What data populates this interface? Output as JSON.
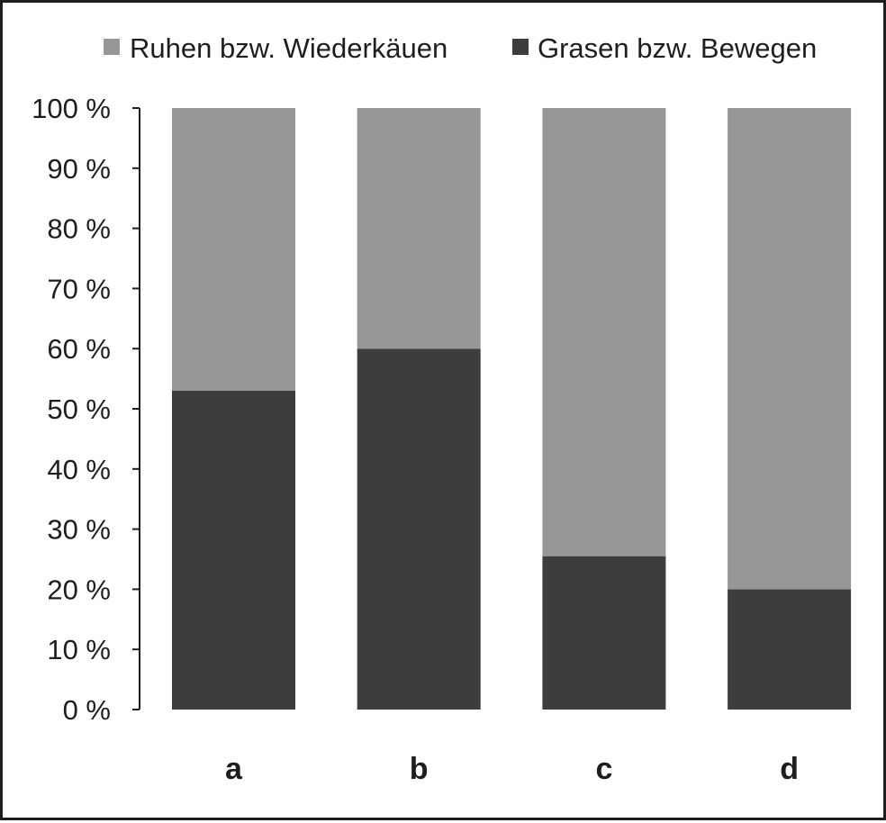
{
  "chart_data": {
    "type": "bar",
    "stacked": true,
    "categories": [
      "a",
      "b",
      "c",
      "d"
    ],
    "series": [
      {
        "name": "Grasen bzw. Bewegen",
        "values": [
          53,
          60,
          25.5,
          20
        ],
        "color": "#3d3d3d"
      },
      {
        "name": "Ruhen bzw. Wiederkäuen",
        "values": [
          47,
          40,
          74.5,
          80
        ],
        "color": "#979797"
      }
    ],
    "legend_order": [
      "Ruhen bzw. Wiederkäuen",
      "Grasen bzw. Bewegen"
    ],
    "yticks": [
      "0 %",
      "10 %",
      "20 %",
      "30 %",
      "40 %",
      "50 %",
      "60 %",
      "70 %",
      "80 %",
      "90 %",
      "100 %"
    ],
    "ylim": [
      0,
      100
    ],
    "title": "",
    "xlabel": "",
    "ylabel": "",
    "grid": false,
    "legend_position": "top"
  }
}
